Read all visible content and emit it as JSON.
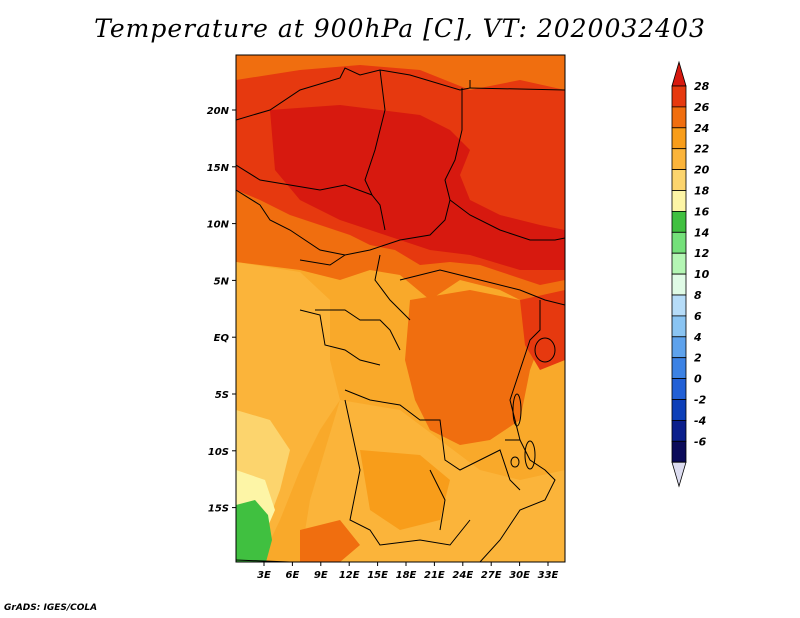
{
  "title": "Temperature at 900hPa [C], VT: 2020032403",
  "footer": "GrADS: IGES/COLA",
  "map": {
    "lat_labels": [
      "20N",
      "15N",
      "10N",
      "5N",
      "EQ",
      "5S",
      "10S",
      "15S"
    ],
    "lon_labels": [
      "3E",
      "6E",
      "9E",
      "12E",
      "15E",
      "18E",
      "21E",
      "24E",
      "27E",
      "30E",
      "33E"
    ]
  },
  "colorbar": {
    "labels": [
      "28",
      "26",
      "24",
      "22",
      "20",
      "18",
      "16",
      "14",
      "12",
      "10",
      "8",
      "6",
      "4",
      "2",
      "0",
      "-2",
      "-4",
      "-6"
    ],
    "colors": [
      "#d7190f",
      "#e6390f",
      "#f06e0f",
      "#f89d1a",
      "#fbb43a",
      "#fcd46d",
      "#fdf5a6",
      "#40c040",
      "#74e07a",
      "#b4f6b4",
      "#e0fbe6",
      "#b6dcf8",
      "#8ac4f2",
      "#5ea2ec",
      "#3c82e4",
      "#2260d6",
      "#0d3fb8",
      "#0b1f8c",
      "#0b0b5a",
      "#dcdcf0"
    ]
  }
}
